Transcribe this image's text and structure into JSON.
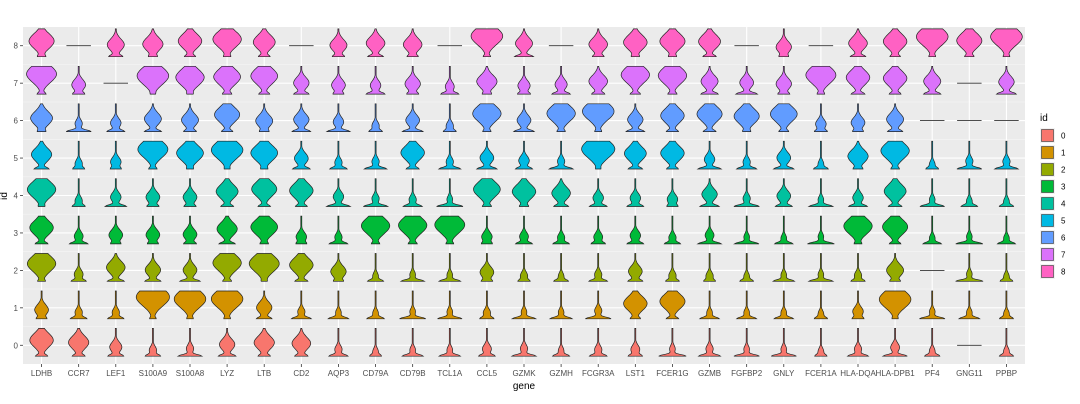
{
  "chart_data": {
    "type": "violin",
    "xlabel": "gene",
    "ylabel": "id",
    "genes": [
      "LDHB",
      "CCR7",
      "LEF1",
      "S100A9",
      "S100A8",
      "LYZ",
      "LTB",
      "CD2",
      "AQP3",
      "CD79A",
      "CD79B",
      "TCL1A",
      "CCL5",
      "GZMK",
      "GZMH",
      "FCGR3A",
      "LST1",
      "FCER1G",
      "GZMB",
      "FGFBP2",
      "GNLY",
      "FCER1A",
      "HLA-DQA1",
      "HLA-DPB1",
      "PF4",
      "GNG11",
      "PPBP"
    ],
    "gene_tick_labels": [
      "LDHB",
      "CCR7",
      "LEF1",
      "S100A9",
      "S100A8",
      "LYZ",
      "LTB",
      "CD2",
      "AQP3",
      "CD79A",
      "CD79B",
      "TCL1A",
      "CCL5",
      "GZMK",
      "GZMH",
      "FCGR3A",
      "LST1",
      "FCER1G",
      "GZMB",
      "FGFBP2",
      "GNLY",
      "FCER1A",
      "HLA-DQA",
      "HLA-DPB1",
      "PF4",
      "GNG11",
      "PPBP"
    ],
    "ids": [
      "0",
      "1",
      "2",
      "3",
      "4",
      "5",
      "6",
      "7",
      "8"
    ],
    "ylim": [
      -0.5,
      8.5
    ],
    "grid": true,
    "legend_placement": "right",
    "legend": {
      "title": "id",
      "entries": [
        {
          "label": "0",
          "color": "#F8766D"
        },
        {
          "label": "1",
          "color": "#D39200"
        },
        {
          "label": "2",
          "color": "#93AA00"
        },
        {
          "label": "3",
          "color": "#00BA38"
        },
        {
          "label": "4",
          "color": "#00C19F"
        },
        {
          "label": "5",
          "color": "#00B9E3"
        },
        {
          "label": "6",
          "color": "#619CFF"
        },
        {
          "label": "7",
          "color": "#DB72FB"
        },
        {
          "label": "8",
          "color": "#FF61C3"
        }
      ]
    },
    "relative_expression_by_id": [
      [
        0.6,
        0.5,
        0.25,
        0.1,
        0.1,
        0.35,
        0.5,
        0.45,
        0.1,
        0.05,
        0.05,
        0.05,
        0.15,
        0.1,
        0.05,
        0.1,
        0.15,
        0.05,
        0.1,
        0.05,
        0.05,
        0.05,
        0.1,
        0.15,
        0.05,
        0.0,
        0.05
      ],
      [
        0.3,
        0.1,
        0.1,
        0.9,
        0.85,
        0.85,
        0.35,
        0.1,
        0.05,
        0.05,
        0.05,
        0.05,
        0.1,
        0.05,
        0.05,
        0.1,
        0.6,
        0.65,
        0.05,
        0.05,
        0.05,
        0.05,
        0.2,
        0.85,
        0.05,
        0.05,
        0.05
      ],
      [
        0.75,
        0.15,
        0.45,
        0.35,
        0.3,
        0.75,
        0.8,
        0.6,
        0.35,
        0.05,
        0.05,
        0.05,
        0.3,
        0.1,
        0.05,
        0.1,
        0.3,
        0.1,
        0.1,
        0.05,
        0.05,
        0.05,
        0.1,
        0.4,
        0.0,
        0.05,
        0.05
      ],
      [
        0.6,
        0.15,
        0.3,
        0.3,
        0.3,
        0.5,
        0.7,
        0.2,
        0.1,
        0.75,
        0.75,
        0.8,
        0.2,
        0.15,
        0.1,
        0.15,
        0.2,
        0.1,
        0.15,
        0.05,
        0.05,
        0.05,
        0.75,
        0.65,
        0.05,
        0.05,
        0.05
      ],
      [
        0.75,
        0.1,
        0.2,
        0.3,
        0.3,
        0.55,
        0.65,
        0.6,
        0.2,
        0.1,
        0.1,
        0.05,
        0.7,
        0.6,
        0.45,
        0.2,
        0.2,
        0.2,
        0.35,
        0.1,
        0.3,
        0.05,
        0.2,
        0.55,
        0.05,
        0.05,
        0.05
      ],
      [
        0.5,
        0.1,
        0.2,
        0.8,
        0.7,
        0.85,
        0.7,
        0.3,
        0.1,
        0.1,
        0.6,
        0.1,
        0.3,
        0.2,
        0.1,
        0.9,
        0.55,
        0.6,
        0.2,
        0.1,
        0.3,
        0.05,
        0.5,
        0.75,
        0.05,
        0.1,
        0.1
      ],
      [
        0.55,
        0.1,
        0.2,
        0.4,
        0.4,
        0.65,
        0.4,
        0.35,
        0.2,
        0.1,
        0.3,
        0.1,
        0.75,
        0.3,
        0.75,
        0.85,
        0.35,
        0.6,
        0.65,
        0.65,
        0.7,
        0.2,
        0.3,
        0.4,
        0.0,
        0.0,
        0.0
      ],
      [
        0.8,
        0.3,
        0.0,
        0.85,
        0.75,
        0.7,
        0.7,
        0.35,
        0.3,
        0.2,
        0.35,
        0.15,
        0.5,
        0.25,
        0.25,
        0.45,
        0.75,
        0.75,
        0.4,
        0.3,
        0.35,
        0.8,
        0.6,
        0.6,
        0.4,
        0.0,
        0.35
      ],
      [
        0.65,
        0.0,
        0.4,
        0.5,
        0.6,
        0.75,
        0.55,
        0.0,
        0.4,
        0.45,
        0.45,
        0.0,
        0.85,
        0.4,
        0.0,
        0.45,
        0.6,
        0.65,
        0.55,
        0.0,
        0.35,
        0.0,
        0.45,
        0.6,
        0.85,
        0.65,
        0.85
      ]
    ]
  }
}
